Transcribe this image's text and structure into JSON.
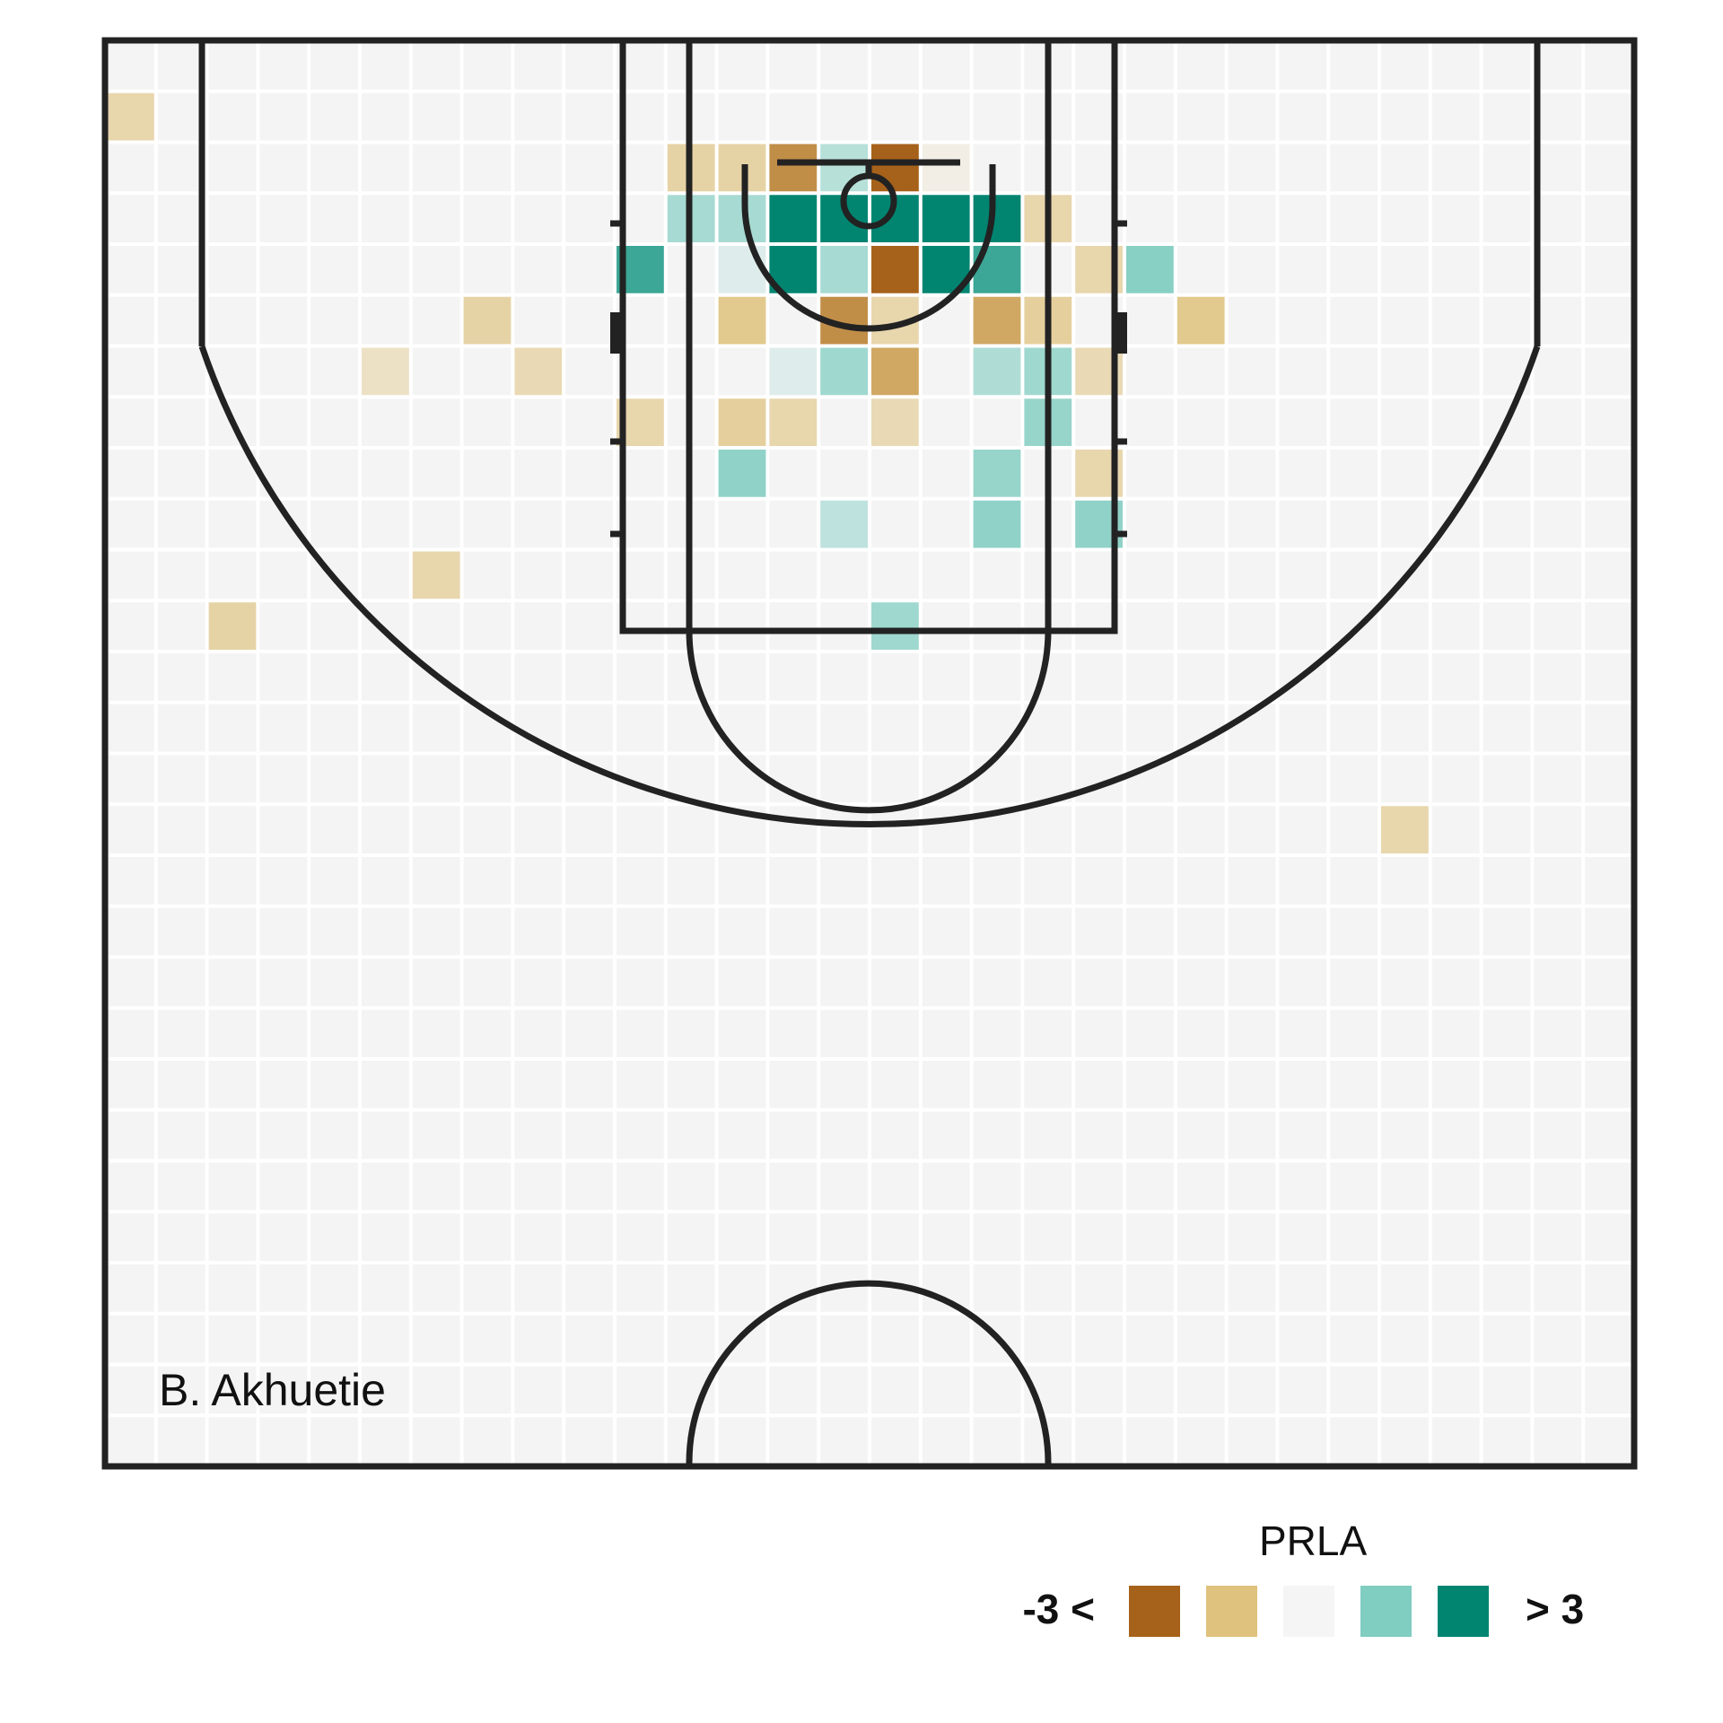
{
  "chart_data": {
    "type": "heatmap",
    "title": "",
    "player": "B. Akhuetie",
    "grid": {
      "cols": 30,
      "rows": 28
    },
    "legend": {
      "title": "PRLA",
      "low_label": "-3 <",
      "high_label": "> 3",
      "bins": [
        {
          "value": -3,
          "color": "#a6611a"
        },
        {
          "value": -1.5,
          "color": "#dfc27d"
        },
        {
          "value": 0,
          "color": "#f5f5f5"
        },
        {
          "value": 1.5,
          "color": "#80cdc1"
        },
        {
          "value": 3,
          "color": "#018571"
        }
      ]
    },
    "cells": [
      {
        "col": 0,
        "row": 1,
        "value": -0.9
      },
      {
        "col": 11,
        "row": 2,
        "value": -1.0
      },
      {
        "col": 12,
        "row": 2,
        "value": -1.0
      },
      {
        "col": 13,
        "row": 2,
        "value": -2.3
      },
      {
        "col": 14,
        "row": 2,
        "value": 0.8
      },
      {
        "col": 15,
        "row": 2,
        "value": -3.0
      },
      {
        "col": 16,
        "row": 2,
        "value": -0.2
      },
      {
        "col": 11,
        "row": 3,
        "value": 1.0
      },
      {
        "col": 12,
        "row": 3,
        "value": 1.0
      },
      {
        "col": 13,
        "row": 3,
        "value": 3.0
      },
      {
        "col": 14,
        "row": 3,
        "value": 3.0
      },
      {
        "col": 15,
        "row": 3,
        "value": 3.0
      },
      {
        "col": 16,
        "row": 3,
        "value": 3.0
      },
      {
        "col": 17,
        "row": 3,
        "value": 3.0
      },
      {
        "col": 18,
        "row": 3,
        "value": -0.9
      },
      {
        "col": 10,
        "row": 4,
        "value": 2.3
      },
      {
        "col": 12,
        "row": 4,
        "value": 0.3
      },
      {
        "col": 13,
        "row": 4,
        "value": 3.0
      },
      {
        "col": 14,
        "row": 4,
        "value": 1.0
      },
      {
        "col": 15,
        "row": 4,
        "value": -3.0
      },
      {
        "col": 16,
        "row": 4,
        "value": 3.0
      },
      {
        "col": 17,
        "row": 4,
        "value": 2.3
      },
      {
        "col": 19,
        "row": 4,
        "value": -0.9
      },
      {
        "col": 20,
        "row": 4,
        "value": 1.4
      },
      {
        "col": 7,
        "row": 5,
        "value": -1.0
      },
      {
        "col": 12,
        "row": 5,
        "value": -1.3
      },
      {
        "col": 14,
        "row": 5,
        "value": -2.3
      },
      {
        "col": 15,
        "row": 5,
        "value": -0.9
      },
      {
        "col": 17,
        "row": 5,
        "value": -1.9
      },
      {
        "col": 18,
        "row": 5,
        "value": -1.1
      },
      {
        "col": 21,
        "row": 5,
        "value": -1.3
      },
      {
        "col": 5,
        "row": 6,
        "value": -0.6
      },
      {
        "col": 8,
        "row": 6,
        "value": -0.8
      },
      {
        "col": 13,
        "row": 6,
        "value": 0.3
      },
      {
        "col": 14,
        "row": 6,
        "value": 1.1
      },
      {
        "col": 15,
        "row": 6,
        "value": -1.9
      },
      {
        "col": 17,
        "row": 6,
        "value": 0.9
      },
      {
        "col": 18,
        "row": 6,
        "value": 1.1
      },
      {
        "col": 19,
        "row": 6,
        "value": -0.8
      },
      {
        "col": 10,
        "row": 7,
        "value": -0.9
      },
      {
        "col": 12,
        "row": 7,
        "value": -1.1
      },
      {
        "col": 13,
        "row": 7,
        "value": -0.9
      },
      {
        "col": 15,
        "row": 7,
        "value": -0.8
      },
      {
        "col": 18,
        "row": 7,
        "value": 1.2
      },
      {
        "col": 12,
        "row": 8,
        "value": 1.3
      },
      {
        "col": 17,
        "row": 8,
        "value": 1.2
      },
      {
        "col": 19,
        "row": 8,
        "value": -0.9
      },
      {
        "col": 14,
        "row": 9,
        "value": 0.7
      },
      {
        "col": 17,
        "row": 9,
        "value": 1.3
      },
      {
        "col": 19,
        "row": 9,
        "value": 1.3
      },
      {
        "col": 6,
        "row": 10,
        "value": -0.9
      },
      {
        "col": 2,
        "row": 11,
        "value": -1.0
      },
      {
        "col": 15,
        "row": 11,
        "value": 1.1
      },
      {
        "col": 25,
        "row": 15,
        "value": -0.9
      }
    ]
  }
}
